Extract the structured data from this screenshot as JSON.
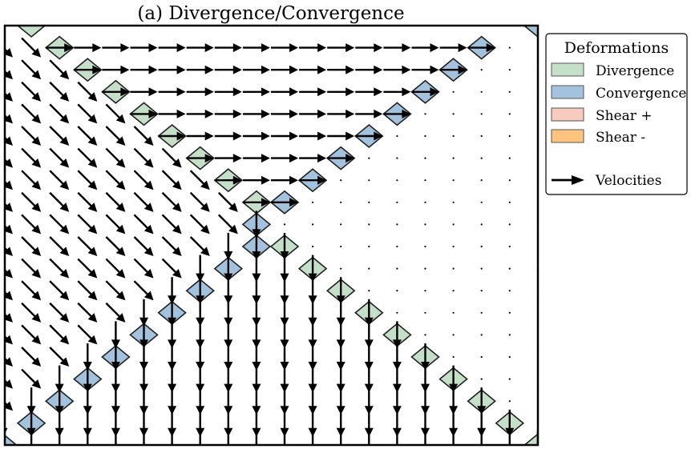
{
  "chart_data": {
    "type": "quiver",
    "title": "(a) Divergence/Convergence",
    "grid": false,
    "legend": {
      "title": "Deformations",
      "placement": "outside-right-top",
      "entries": [
        {
          "label": "Divergence",
          "color": "#c5e0c8",
          "kind": "patch"
        },
        {
          "label": "Convergence",
          "color": "#a3c2de",
          "kind": "patch"
        },
        {
          "label": "Shear +",
          "color": "#f7cbbd",
          "kind": "patch"
        },
        {
          "label": "Shear -",
          "color": "#fec47e",
          "kind": "patch"
        },
        {
          "label": "Velocities",
          "color": "#000000",
          "kind": "arrow"
        }
      ]
    },
    "velocity_field": {
      "grid_columns": 19,
      "grid_rows": 19,
      "regions": [
        {
          "name": "upper",
          "where": "row >= 1 and col > row",
          "u": 1,
          "v": 0
        },
        {
          "name": "left",
          "where": "col <= row and col + row < 18",
          "u": 0.707,
          "v": -0.707
        },
        {
          "name": "bottom",
          "where": "col + row >= 18 and col <= row",
          "u": 0,
          "v": -1
        },
        {
          "name": "right",
          "where": "otherwise",
          "u": 0,
          "v": 0
        }
      ]
    },
    "deformation_lines": [
      {
        "type": "Divergence",
        "cells": "col = row + 1 (upper-left diagonal, top-left to centre)"
      },
      {
        "type": "Convergence",
        "cells": "col = row (upper-right diagonal, top-right to centre)"
      },
      {
        "type": "Divergence",
        "cells": "col + row = 18 (lower-right diagonal, centre to bottom-right)"
      },
      {
        "type": "Convergence",
        "cells": "col + row = 17 (lower-left diagonal, centre to bottom-left)"
      }
    ]
  },
  "colors": {
    "divergence": "#c5e0c8",
    "convergence": "#a3c2de",
    "shear_plus": "#f7cbbd",
    "shear_minus": "#fec47e",
    "edge": "#222222",
    "arrow": "#000000"
  }
}
